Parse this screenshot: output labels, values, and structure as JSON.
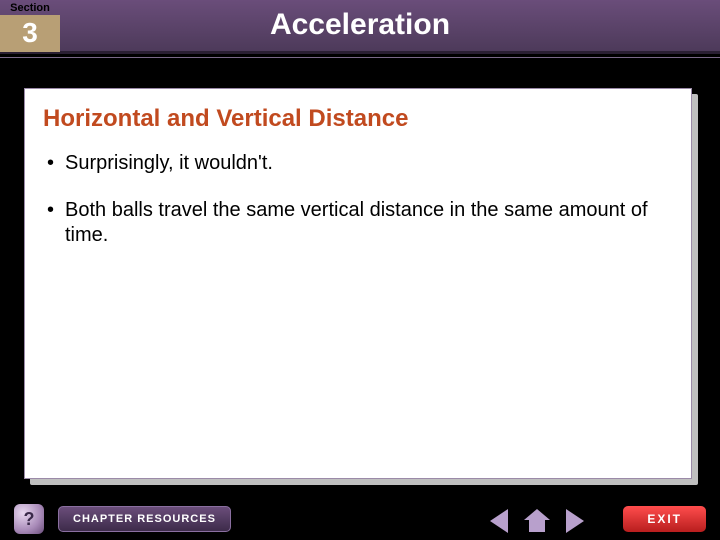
{
  "colors": {
    "header_gradient_top": "#6a4d7a",
    "header_gradient_bottom": "#4d3a5a",
    "section_number_bg": "#b89f75",
    "slide_title_color": "#c14a1f",
    "nav_glyph_color": "#b8a0cc",
    "exit_bg_top": "#ff4d4d",
    "exit_bg_bottom": "#b81e1e",
    "content_border": "#9b8aa8"
  },
  "header": {
    "section_label": "Section",
    "section_number": "3",
    "chapter_title": "Acceleration"
  },
  "content": {
    "title": "Horizontal and Vertical Distance",
    "bullets": [
      "Surprisingly, it wouldn't.",
      "Both balls travel the same vertical distance in the same amount of time."
    ]
  },
  "footer": {
    "help_label": "?",
    "resources_label": "CHAPTER RESOURCES",
    "exit_label": "EXIT"
  }
}
